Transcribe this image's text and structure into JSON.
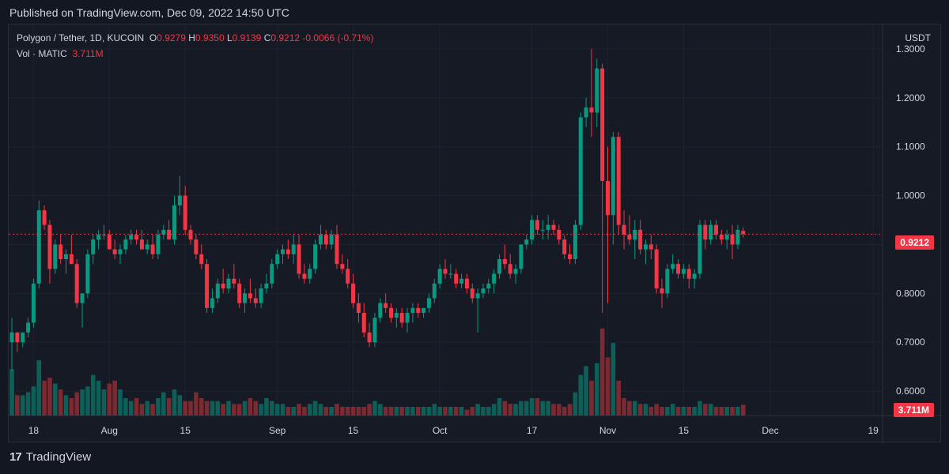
{
  "header": {
    "published": "Published on TradingView.com, Dec 09, 2022 14:50 UTC"
  },
  "legend": {
    "symbol": "Polygon / Tether, 1D, KUCOIN",
    "o_label": "O",
    "o_value": "0.9279",
    "h_label": "H",
    "h_value": "0.9350",
    "l_label": "L",
    "l_value": "0.9139",
    "c_label": "C",
    "c_value": "0.9212",
    "change": "-0.0066 (-0.71%)",
    "vol_label": "Vol · MATIC",
    "vol_value": "3.711M"
  },
  "footer": {
    "brand": "TradingView",
    "brand_mark": "17"
  },
  "colors": {
    "up": "#089981",
    "down": "#f23645",
    "bg": "#161a25",
    "grid": "#1f2330",
    "text": "#d1d4dc"
  },
  "chart_data": {
    "type": "candlestick",
    "title": "Polygon / Tether, 1D, KUCOIN",
    "currency": "USDT",
    "ylim": [
      0.55,
      1.35
    ],
    "y_ticks": [
      "1.3000",
      "1.2000",
      "1.1000",
      "1.0000",
      "0.9000",
      "0.8000",
      "0.7000",
      "0.6000"
    ],
    "x_ticks": [
      {
        "day": 4,
        "label": "18"
      },
      {
        "day": 18,
        "label": "Aug"
      },
      {
        "day": 32,
        "label": "15"
      },
      {
        "day": 49,
        "label": "Sep"
      },
      {
        "day": 63,
        "label": "15"
      },
      {
        "day": 79,
        "label": "Oct"
      },
      {
        "day": 96,
        "label": "17"
      },
      {
        "day": 110,
        "label": "Nov"
      },
      {
        "day": 124,
        "label": "15"
      },
      {
        "day": 140,
        "label": "Dec"
      },
      {
        "day": 159,
        "label": "19"
      }
    ],
    "last_price": "0.9212",
    "last_volume": "3.711M",
    "volume_max_m": 34,
    "candles": [
      [
        0.7,
        0.75,
        0.64,
        0.72,
        16
      ],
      [
        0.72,
        0.72,
        0.68,
        0.7,
        7
      ],
      [
        0.7,
        0.72,
        0.69,
        0.72,
        7
      ],
      [
        0.72,
        0.75,
        0.71,
        0.74,
        8
      ],
      [
        0.74,
        0.83,
        0.73,
        0.82,
        10
      ],
      [
        0.82,
        0.99,
        0.81,
        0.97,
        19
      ],
      [
        0.97,
        0.98,
        0.93,
        0.94,
        12
      ],
      [
        0.94,
        0.95,
        0.82,
        0.85,
        13
      ],
      [
        0.85,
        0.91,
        0.84,
        0.9,
        11
      ],
      [
        0.9,
        0.92,
        0.86,
        0.87,
        9
      ],
      [
        0.87,
        0.89,
        0.84,
        0.88,
        7
      ],
      [
        0.88,
        0.92,
        0.86,
        0.86,
        6
      ],
      [
        0.86,
        0.87,
        0.77,
        0.78,
        8
      ],
      [
        0.78,
        0.8,
        0.73,
        0.8,
        9
      ],
      [
        0.8,
        0.89,
        0.79,
        0.88,
        10
      ],
      [
        0.88,
        0.92,
        0.86,
        0.91,
        14
      ],
      [
        0.91,
        0.93,
        0.89,
        0.92,
        12
      ],
      [
        0.92,
        0.94,
        0.91,
        0.92,
        9
      ],
      [
        0.92,
        0.93,
        0.89,
        0.89,
        11
      ],
      [
        0.89,
        0.91,
        0.87,
        0.88,
        12
      ],
      [
        0.88,
        0.9,
        0.86,
        0.89,
        9
      ],
      [
        0.89,
        0.92,
        0.88,
        0.91,
        6
      ],
      [
        0.91,
        0.93,
        0.9,
        0.92,
        5
      ],
      [
        0.92,
        0.93,
        0.9,
        0.91,
        6
      ],
      [
        0.91,
        0.93,
        0.89,
        0.89,
        4
      ],
      [
        0.89,
        0.91,
        0.88,
        0.9,
        5
      ],
      [
        0.9,
        0.92,
        0.87,
        0.88,
        4
      ],
      [
        0.88,
        0.93,
        0.87,
        0.92,
        6
      ],
      [
        0.92,
        0.94,
        0.91,
        0.93,
        8
      ],
      [
        0.93,
        0.95,
        0.91,
        0.91,
        6
      ],
      [
        0.91,
        1.0,
        0.9,
        0.98,
        9
      ],
      [
        0.98,
        1.04,
        0.96,
        1.0,
        7
      ],
      [
        1.0,
        1.02,
        0.92,
        0.93,
        5
      ],
      [
        0.93,
        0.94,
        0.9,
        0.91,
        5
      ],
      [
        0.91,
        0.92,
        0.87,
        0.88,
        8
      ],
      [
        0.88,
        0.9,
        0.85,
        0.86,
        6
      ],
      [
        0.86,
        0.87,
        0.76,
        0.77,
        5
      ],
      [
        0.77,
        0.81,
        0.76,
        0.79,
        5
      ],
      [
        0.79,
        0.83,
        0.78,
        0.82,
        5
      ],
      [
        0.82,
        0.85,
        0.8,
        0.81,
        4
      ],
      [
        0.81,
        0.84,
        0.8,
        0.83,
        5
      ],
      [
        0.83,
        0.86,
        0.81,
        0.82,
        4
      ],
      [
        0.82,
        0.83,
        0.77,
        0.78,
        4
      ],
      [
        0.78,
        0.81,
        0.76,
        0.8,
        5
      ],
      [
        0.8,
        0.83,
        0.78,
        0.79,
        6
      ],
      [
        0.79,
        0.81,
        0.77,
        0.78,
        5
      ],
      [
        0.78,
        0.82,
        0.77,
        0.81,
        4
      ],
      [
        0.81,
        0.84,
        0.8,
        0.82,
        6
      ],
      [
        0.82,
        0.87,
        0.81,
        0.86,
        5
      ],
      [
        0.86,
        0.89,
        0.85,
        0.88,
        4
      ],
      [
        0.88,
        0.9,
        0.86,
        0.89,
        4
      ],
      [
        0.89,
        0.91,
        0.87,
        0.88,
        3
      ],
      [
        0.88,
        0.92,
        0.86,
        0.9,
        3
      ],
      [
        0.9,
        0.92,
        0.83,
        0.84,
        4
      ],
      [
        0.84,
        0.86,
        0.82,
        0.83,
        3
      ],
      [
        0.83,
        0.86,
        0.82,
        0.85,
        4
      ],
      [
        0.85,
        0.91,
        0.84,
        0.9,
        5
      ],
      [
        0.9,
        0.94,
        0.89,
        0.92,
        4
      ],
      [
        0.92,
        0.93,
        0.89,
        0.9,
        3
      ],
      [
        0.9,
        0.93,
        0.89,
        0.92,
        3
      ],
      [
        0.92,
        0.94,
        0.85,
        0.86,
        4
      ],
      [
        0.86,
        0.88,
        0.84,
        0.85,
        3
      ],
      [
        0.85,
        0.87,
        0.81,
        0.82,
        3
      ],
      [
        0.82,
        0.84,
        0.77,
        0.78,
        3
      ],
      [
        0.78,
        0.8,
        0.74,
        0.76,
        3
      ],
      [
        0.76,
        0.78,
        0.71,
        0.72,
        3
      ],
      [
        0.72,
        0.74,
        0.69,
        0.7,
        4
      ],
      [
        0.7,
        0.76,
        0.69,
        0.75,
        5
      ],
      [
        0.75,
        0.79,
        0.74,
        0.78,
        4
      ],
      [
        0.78,
        0.8,
        0.76,
        0.77,
        3
      ],
      [
        0.77,
        0.78,
        0.74,
        0.75,
        3
      ],
      [
        0.75,
        0.77,
        0.73,
        0.76,
        3
      ],
      [
        0.76,
        0.77,
        0.73,
        0.74,
        3
      ],
      [
        0.74,
        0.77,
        0.72,
        0.76,
        3
      ],
      [
        0.76,
        0.78,
        0.74,
        0.77,
        3
      ],
      [
        0.77,
        0.78,
        0.75,
        0.76,
        3
      ],
      [
        0.76,
        0.77,
        0.75,
        0.77,
        3
      ],
      [
        0.77,
        0.8,
        0.76,
        0.79,
        3
      ],
      [
        0.79,
        0.83,
        0.78,
        0.82,
        4
      ],
      [
        0.82,
        0.86,
        0.81,
        0.85,
        3
      ],
      [
        0.85,
        0.87,
        0.83,
        0.84,
        3
      ],
      [
        0.84,
        0.86,
        0.83,
        0.84,
        3
      ],
      [
        0.84,
        0.85,
        0.81,
        0.82,
        3
      ],
      [
        0.82,
        0.84,
        0.81,
        0.83,
        3
      ],
      [
        0.83,
        0.84,
        0.8,
        0.81,
        2
      ],
      [
        0.81,
        0.82,
        0.78,
        0.79,
        3
      ],
      [
        0.79,
        0.81,
        0.72,
        0.8,
        4
      ],
      [
        0.8,
        0.82,
        0.79,
        0.81,
        3
      ],
      [
        0.81,
        0.83,
        0.8,
        0.82,
        3
      ],
      [
        0.82,
        0.85,
        0.8,
        0.84,
        4
      ],
      [
        0.84,
        0.88,
        0.83,
        0.87,
        6
      ],
      [
        0.87,
        0.9,
        0.85,
        0.86,
        5
      ],
      [
        0.86,
        0.88,
        0.83,
        0.84,
        4
      ],
      [
        0.84,
        0.86,
        0.82,
        0.85,
        4
      ],
      [
        0.85,
        0.9,
        0.84,
        0.9,
        5
      ],
      [
        0.9,
        0.92,
        0.89,
        0.91,
        5
      ],
      [
        0.91,
        0.96,
        0.9,
        0.95,
        6
      ],
      [
        0.95,
        0.96,
        0.92,
        0.93,
        6
      ],
      [
        0.93,
        0.95,
        0.91,
        0.93,
        5
      ],
      [
        0.93,
        0.96,
        0.91,
        0.94,
        5
      ],
      [
        0.94,
        0.95,
        0.92,
        0.93,
        4
      ],
      [
        0.93,
        0.94,
        0.9,
        0.91,
        4
      ],
      [
        0.91,
        0.92,
        0.87,
        0.88,
        3
      ],
      [
        0.88,
        0.9,
        0.86,
        0.87,
        4
      ],
      [
        0.87,
        0.95,
        0.86,
        0.94,
        8
      ],
      [
        0.94,
        1.17,
        0.93,
        1.16,
        14
      ],
      [
        1.16,
        1.2,
        1.14,
        1.18,
        17
      ],
      [
        1.18,
        1.3,
        1.12,
        1.17,
        12
      ],
      [
        1.17,
        1.28,
        1.14,
        1.26,
        18
      ],
      [
        1.26,
        1.27,
        0.76,
        1.03,
        30
      ],
      [
        1.03,
        1.1,
        0.78,
        0.96,
        20
      ],
      [
        0.96,
        1.13,
        0.9,
        1.12,
        25
      ],
      [
        1.12,
        1.13,
        0.92,
        0.94,
        12
      ],
      [
        0.94,
        0.97,
        0.89,
        0.92,
        6
      ],
      [
        0.92,
        0.96,
        0.9,
        0.91,
        5
      ],
      [
        0.91,
        0.95,
        0.87,
        0.93,
        5
      ],
      [
        0.93,
        0.95,
        0.88,
        0.89,
        4
      ],
      [
        0.89,
        0.91,
        0.86,
        0.9,
        4
      ],
      [
        0.9,
        0.92,
        0.87,
        0.89,
        3
      ],
      [
        0.89,
        0.9,
        0.8,
        0.81,
        4
      ],
      [
        0.81,
        0.83,
        0.77,
        0.8,
        3
      ],
      [
        0.8,
        0.86,
        0.79,
        0.85,
        3
      ],
      [
        0.85,
        0.88,
        0.84,
        0.86,
        4
      ],
      [
        0.86,
        0.87,
        0.83,
        0.84,
        3
      ],
      [
        0.84,
        0.86,
        0.83,
        0.85,
        3
      ],
      [
        0.85,
        0.86,
        0.81,
        0.83,
        3
      ],
      [
        0.83,
        0.85,
        0.81,
        0.84,
        3
      ],
      [
        0.84,
        0.95,
        0.83,
        0.94,
        5
      ],
      [
        0.94,
        0.95,
        0.89,
        0.91,
        4
      ],
      [
        0.91,
        0.95,
        0.9,
        0.94,
        4
      ],
      [
        0.94,
        0.95,
        0.91,
        0.92,
        3
      ],
      [
        0.92,
        0.93,
        0.9,
        0.91,
        3
      ],
      [
        0.91,
        0.93,
        0.89,
        0.92,
        3
      ],
      [
        0.92,
        0.94,
        0.87,
        0.9,
        3
      ],
      [
        0.9,
        0.94,
        0.89,
        0.93,
        3
      ],
      [
        0.9279,
        0.935,
        0.9139,
        0.9212,
        3.711
      ]
    ]
  }
}
